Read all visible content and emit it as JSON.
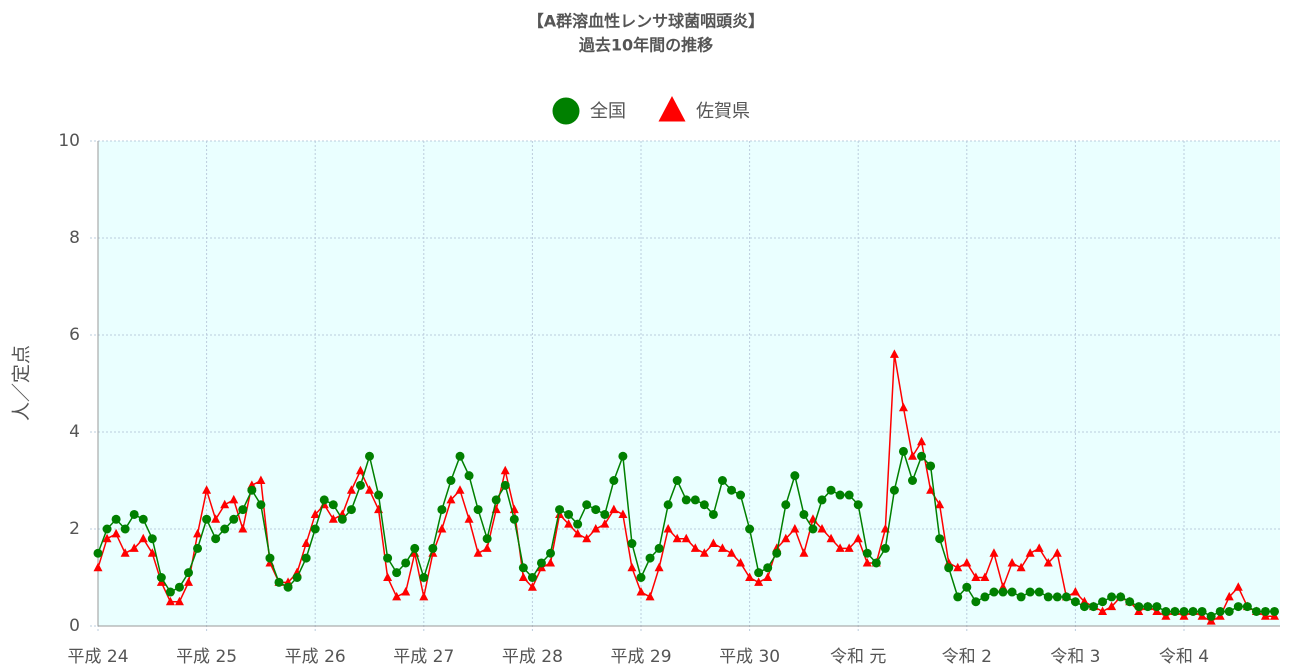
{
  "chart_data": {
    "type": "line",
    "title": "【A群溶血性レンサ球菌咽頭炎】",
    "subtitle": "過去10年間の推移",
    "y_label": "人／定点",
    "categories": [
      "平成 24",
      null,
      null,
      null,
      null,
      null,
      null,
      null,
      null,
      null,
      null,
      null,
      "平成 25",
      null,
      null,
      null,
      null,
      null,
      null,
      null,
      null,
      null,
      null,
      null,
      "平成 26",
      null,
      null,
      null,
      null,
      null,
      null,
      null,
      null,
      null,
      null,
      null,
      "平成 27",
      null,
      null,
      null,
      null,
      null,
      null,
      null,
      null,
      null,
      null,
      null,
      "平成 28",
      null,
      null,
      null,
      null,
      null,
      null,
      null,
      null,
      null,
      null,
      null,
      "平成 29",
      null,
      null,
      null,
      null,
      null,
      null,
      null,
      null,
      null,
      null,
      null,
      "平成 30",
      null,
      null,
      null,
      null,
      null,
      null,
      null,
      null,
      null,
      null,
      null,
      "令和 元",
      null,
      null,
      null,
      null,
      null,
      null,
      null,
      null,
      null,
      null,
      null,
      "令和 2",
      null,
      null,
      null,
      null,
      null,
      null,
      null,
      null,
      null,
      null,
      null,
      "令和 3",
      null,
      null,
      null,
      null,
      null,
      null,
      null,
      null,
      null,
      null,
      null,
      "令和 4",
      null,
      null,
      null,
      null,
      null,
      null,
      null,
      null,
      null,
      null
    ],
    "series": [
      {
        "name": "全国",
        "color": "#008000",
        "marker": "circle",
        "values": [
          1.5,
          2.0,
          2.2,
          2.0,
          2.3,
          2.2,
          1.8,
          1.0,
          0.7,
          0.8,
          1.1,
          1.6,
          2.2,
          1.8,
          2.0,
          2.2,
          2.4,
          2.8,
          2.5,
          1.4,
          0.9,
          0.8,
          1.0,
          1.4,
          2.0,
          2.6,
          2.5,
          2.2,
          2.4,
          2.9,
          3.5,
          2.7,
          1.4,
          1.1,
          1.3,
          1.6,
          1.0,
          1.6,
          2.4,
          3.0,
          3.5,
          3.1,
          2.4,
          1.8,
          2.6,
          2.9,
          2.2,
          1.2,
          1.0,
          1.3,
          1.5,
          2.4,
          2.3,
          2.1,
          2.5,
          2.4,
          2.3,
          3.0,
          3.5,
          1.7,
          1.0,
          1.4,
          1.6,
          2.5,
          3.0,
          2.6,
          2.6,
          2.5,
          2.3,
          3.0,
          2.8,
          2.7,
          2.0,
          1.1,
          1.2,
          1.5,
          2.5,
          3.1,
          2.3,
          2.0,
          2.6,
          2.8,
          2.7,
          2.7,
          2.5,
          1.5,
          1.3,
          1.6,
          2.8,
          3.6,
          3.0,
          3.5,
          3.3,
          1.8,
          1.2,
          0.6,
          0.8,
          0.5,
          0.6,
          0.7,
          0.7,
          0.7,
          0.6,
          0.7,
          0.7,
          0.6,
          0.6,
          0.6,
          0.5,
          0.4,
          0.4,
          0.5,
          0.6,
          0.6,
          0.5,
          0.4,
          0.4,
          0.4,
          0.3,
          0.3,
          0.3,
          0.3,
          0.3,
          0.2,
          0.3,
          0.3,
          0.4,
          0.4,
          0.3,
          0.3,
          0.3
        ]
      },
      {
        "name": "佐賀県",
        "color": "#ff0000",
        "marker": "triangle",
        "values": [
          1.2,
          1.8,
          1.9,
          1.5,
          1.6,
          1.8,
          1.5,
          0.9,
          0.5,
          0.5,
          0.9,
          1.9,
          2.8,
          2.2,
          2.5,
          2.6,
          2.0,
          2.9,
          3.0,
          1.3,
          0.9,
          0.9,
          1.1,
          1.7,
          2.3,
          2.5,
          2.2,
          2.3,
          2.8,
          3.2,
          2.8,
          2.4,
          1.0,
          0.6,
          0.7,
          1.5,
          0.6,
          1.5,
          2.0,
          2.6,
          2.8,
          2.2,
          1.5,
          1.6,
          2.4,
          3.2,
          2.4,
          1.0,
          0.8,
          1.2,
          1.3,
          2.3,
          2.1,
          1.9,
          1.8,
          2.0,
          2.1,
          2.4,
          2.3,
          1.2,
          0.7,
          0.6,
          1.2,
          2.0,
          1.8,
          1.8,
          1.6,
          1.5,
          1.7,
          1.6,
          1.5,
          1.3,
          1.0,
          0.9,
          1.0,
          1.6,
          1.8,
          2.0,
          1.5,
          2.2,
          2.0,
          1.8,
          1.6,
          1.6,
          1.8,
          1.3,
          1.3,
          2.0,
          5.6,
          4.5,
          3.5,
          3.8,
          2.8,
          2.5,
          1.3,
          1.2,
          1.3,
          1.0,
          1.0,
          1.5,
          0.8,
          1.3,
          1.2,
          1.5,
          1.6,
          1.3,
          1.5,
          0.6,
          0.7,
          0.5,
          0.4,
          0.3,
          0.4,
          0.6,
          0.5,
          0.3,
          0.4,
          0.3,
          0.2,
          0.3,
          0.2,
          0.3,
          0.2,
          0.1,
          0.2,
          0.6,
          0.8,
          0.4,
          0.3,
          0.2,
          0.2
        ]
      }
    ],
    "ylim": [
      0,
      10
    ],
    "yticks": [
      0,
      2,
      4,
      6,
      8,
      10
    ],
    "grid": true,
    "legend": "top"
  }
}
